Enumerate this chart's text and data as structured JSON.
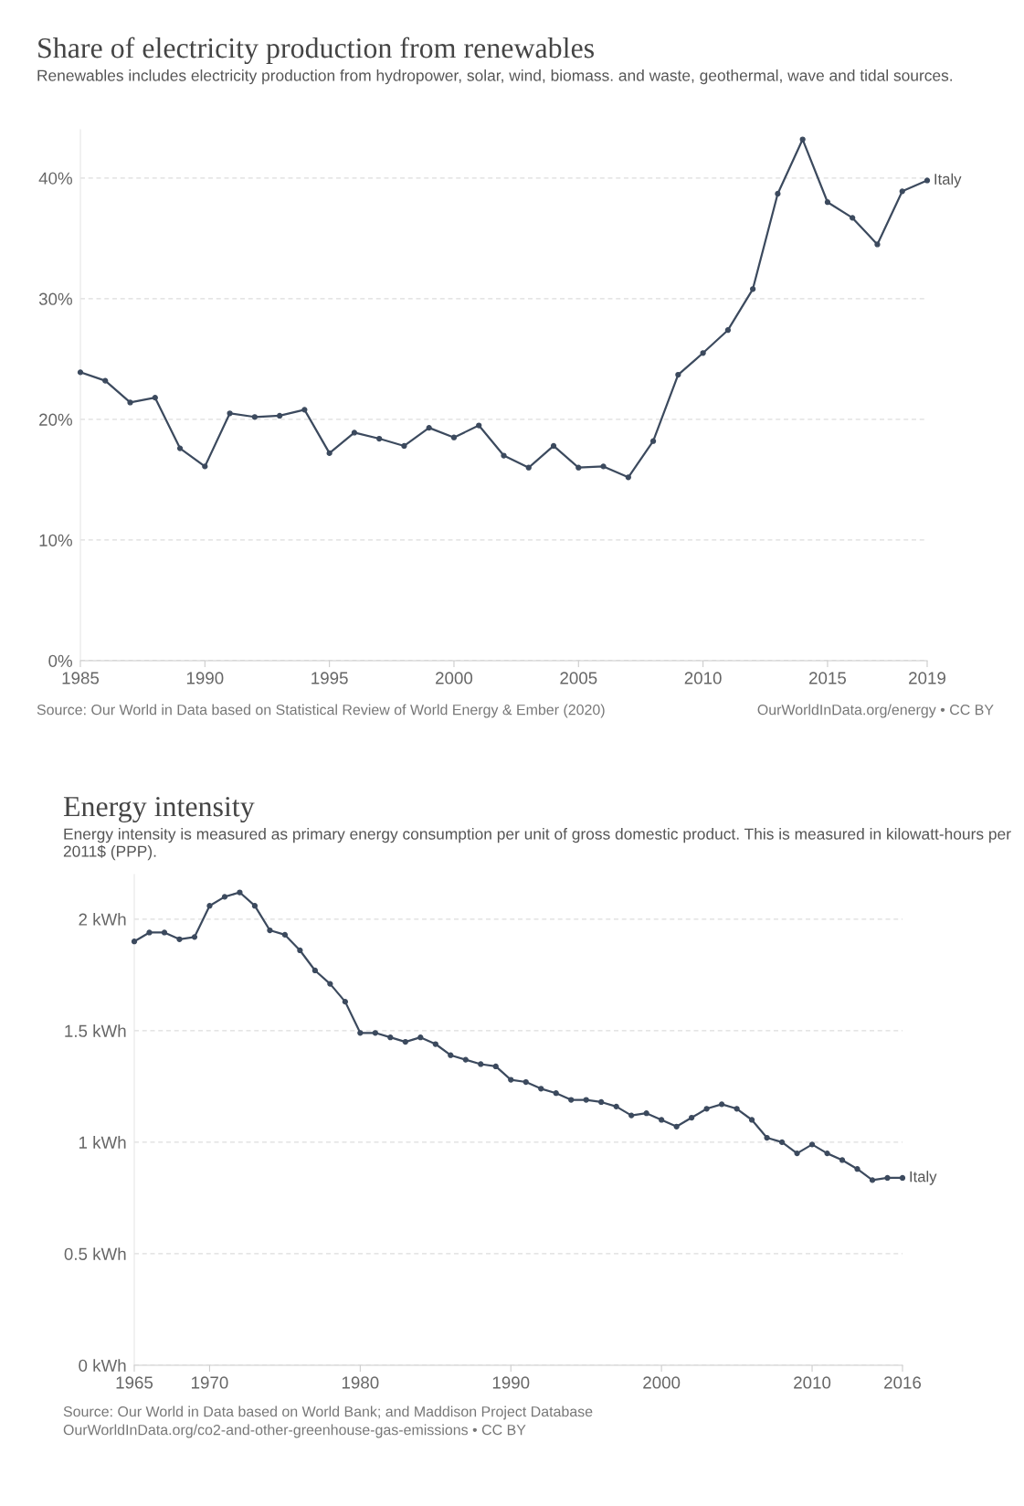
{
  "chart_data": [
    {
      "type": "line",
      "title": "Share of electricity production from renewables",
      "subtitle": "Renewables includes electricity production from hydropower, solar, wind, biomass. and waste, geothermal, wave and tidal sources.",
      "x": [
        1985,
        1986,
        1987,
        1988,
        1989,
        1990,
        1991,
        1992,
        1993,
        1994,
        1995,
        1996,
        1997,
        1998,
        1999,
        2000,
        2001,
        2002,
        2003,
        2004,
        2005,
        2006,
        2007,
        2008,
        2009,
        2010,
        2011,
        2012,
        2013,
        2014,
        2015,
        2016,
        2017,
        2018,
        2019
      ],
      "series": [
        {
          "name": "Italy",
          "color": "#3c4a5e",
          "values": [
            23.9,
            23.2,
            21.4,
            21.8,
            17.6,
            16.1,
            20.5,
            20.2,
            20.3,
            20.8,
            17.2,
            18.9,
            18.4,
            17.8,
            19.3,
            18.5,
            19.5,
            17.0,
            16.0,
            17.8,
            16.0,
            16.1,
            15.2,
            18.2,
            23.7,
            25.5,
            27.4,
            30.8,
            38.7,
            43.2,
            38.0,
            36.7,
            34.5,
            38.9,
            39.8
          ]
        }
      ],
      "xlim": [
        1985,
        2019
      ],
      "xticks": [
        1985,
        1990,
        1995,
        2000,
        2005,
        2010,
        2015,
        2019
      ],
      "ylim": [
        0,
        44
      ],
      "yticks": [
        {
          "value": 0,
          "label": "0%"
        },
        {
          "value": 10,
          "label": "10%"
        },
        {
          "value": 20,
          "label": "20%"
        },
        {
          "value": 30,
          "label": "30%"
        },
        {
          "value": 40,
          "label": "40%"
        }
      ],
      "grid": "y",
      "marker": "circle",
      "line_style": "solid",
      "annotations": [
        "Source: Our World in Data based on Statistical Review of World Energy & Ember (2020)",
        "OurWorldInData.org/energy • CC BY"
      ]
    },
    {
      "type": "line",
      "title": "Energy intensity",
      "subtitle": "Energy intensity is measured as primary energy consumption per unit of gross domestic product. This is measured in kilowatt-hours per 2011$ (PPP).",
      "x": [
        1965,
        1966,
        1967,
        1968,
        1969,
        1970,
        1971,
        1972,
        1973,
        1974,
        1975,
        1976,
        1977,
        1978,
        1979,
        1980,
        1981,
        1982,
        1983,
        1984,
        1985,
        1986,
        1987,
        1988,
        1989,
        1990,
        1991,
        1992,
        1993,
        1994,
        1995,
        1996,
        1997,
        1998,
        1999,
        2000,
        2001,
        2002,
        2003,
        2004,
        2005,
        2006,
        2007,
        2008,
        2009,
        2010,
        2011,
        2012,
        2013,
        2014,
        2015,
        2016
      ],
      "series": [
        {
          "name": "Italy",
          "color": "#3c4a5e",
          "values": [
            1.9,
            1.94,
            1.94,
            1.91,
            1.92,
            2.06,
            2.1,
            2.12,
            2.06,
            1.95,
            1.93,
            1.86,
            1.77,
            1.71,
            1.63,
            1.49,
            1.49,
            1.47,
            1.45,
            1.47,
            1.44,
            1.39,
            1.37,
            1.35,
            1.34,
            1.28,
            1.27,
            1.24,
            1.22,
            1.19,
            1.19,
            1.18,
            1.16,
            1.12,
            1.13,
            1.1,
            1.07,
            1.11,
            1.15,
            1.17,
            1.15,
            1.1,
            1.02,
            1.0,
            0.95,
            0.99,
            0.95,
            0.92,
            0.88,
            0.83,
            0.84,
            0.84
          ]
        }
      ],
      "xlim": [
        1965,
        2016
      ],
      "xticks": [
        1965,
        1970,
        1980,
        1990,
        2000,
        2010,
        2016
      ],
      "ylim": [
        0,
        2.2
      ],
      "yticks": [
        {
          "value": 0,
          "label": "0 kWh"
        },
        {
          "value": 0.5,
          "label": "0.5 kWh"
        },
        {
          "value": 1,
          "label": "1 kWh"
        },
        {
          "value": 1.5,
          "label": "1.5 kWh"
        },
        {
          "value": 2,
          "label": "2 kWh"
        }
      ],
      "grid": "y",
      "marker": "circle",
      "line_style": "solid",
      "annotations": [
        "Source: Our World in Data based on World Bank; and Maddison Project Database",
        "OurWorldInData.org/co2-and-other-greenhouse-gas-emissions • CC BY"
      ]
    }
  ]
}
